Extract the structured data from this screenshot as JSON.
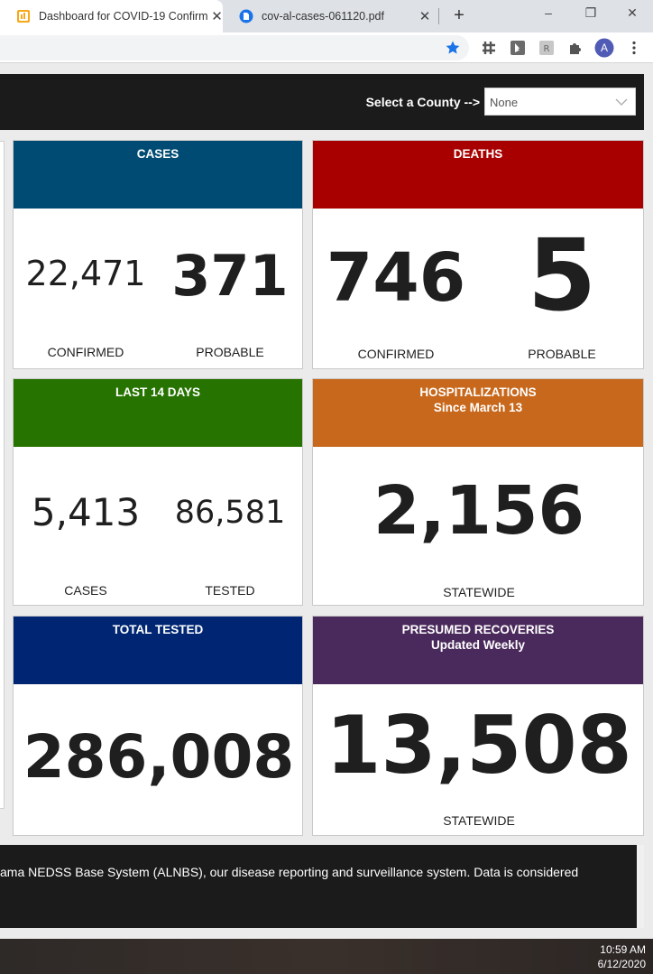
{
  "browser": {
    "tabs": [
      {
        "title": "Dashboard for COVID-19 Confirm",
        "icon": "dashboard-favicon-icon",
        "active": true
      },
      {
        "title": "cov-al-cases-061120.pdf",
        "icon": "pdf-document-icon",
        "active": false
      }
    ],
    "new_tab_symbol": "+",
    "window_controls": [
      "–",
      "❐",
      "✕"
    ],
    "toolbar_icons": [
      "bookmark-star-icon",
      "grid-extension-icon",
      "bing-extension-icon",
      "rx-extension-icon",
      "puzzle-extensions-icon",
      "profile-avatar-icon",
      "kebab-menu-icon"
    ],
    "profile_initial": "A",
    "accent_color": "#1a73e8"
  },
  "county": {
    "label": "Select a County -->",
    "selected": "None"
  },
  "cards": {
    "cases": {
      "title": "CASES",
      "color": "#004b73",
      "left_value": "22,471",
      "left_label": "CONFIRMED",
      "right_value": "371",
      "right_label": "PROBABLE"
    },
    "deaths": {
      "title": "DEATHS",
      "color": "#a80000",
      "left_value": "746",
      "left_label": "CONFIRMED",
      "right_value": "5",
      "right_label": "PROBABLE"
    },
    "last14": {
      "title": "LAST 14 DAYS",
      "color": "#267300",
      "left_value": "5,413",
      "left_label": "CASES",
      "right_value": "86,581",
      "right_label": "TESTED"
    },
    "hosp": {
      "title": "HOSPITALIZATIONS",
      "subtitle": "Since March 13",
      "color": "#c8681c",
      "value": "2,156",
      "label": "STATEWIDE"
    },
    "tested": {
      "title": "TOTAL TESTED",
      "color": "#002673",
      "value": "286,008"
    },
    "recov": {
      "title": "PRESUMED RECOVERIES",
      "subtitle": "Updated Weekly",
      "color": "#4a2a5c",
      "value": "13,508",
      "label": "STATEWIDE"
    }
  },
  "footer": {
    "text": "ama NEDSS Base System (ALNBS), our disease reporting and surveillance system. Data is considered"
  },
  "taskbar": {
    "time": "10:59 AM",
    "date": "6/12/2020"
  }
}
